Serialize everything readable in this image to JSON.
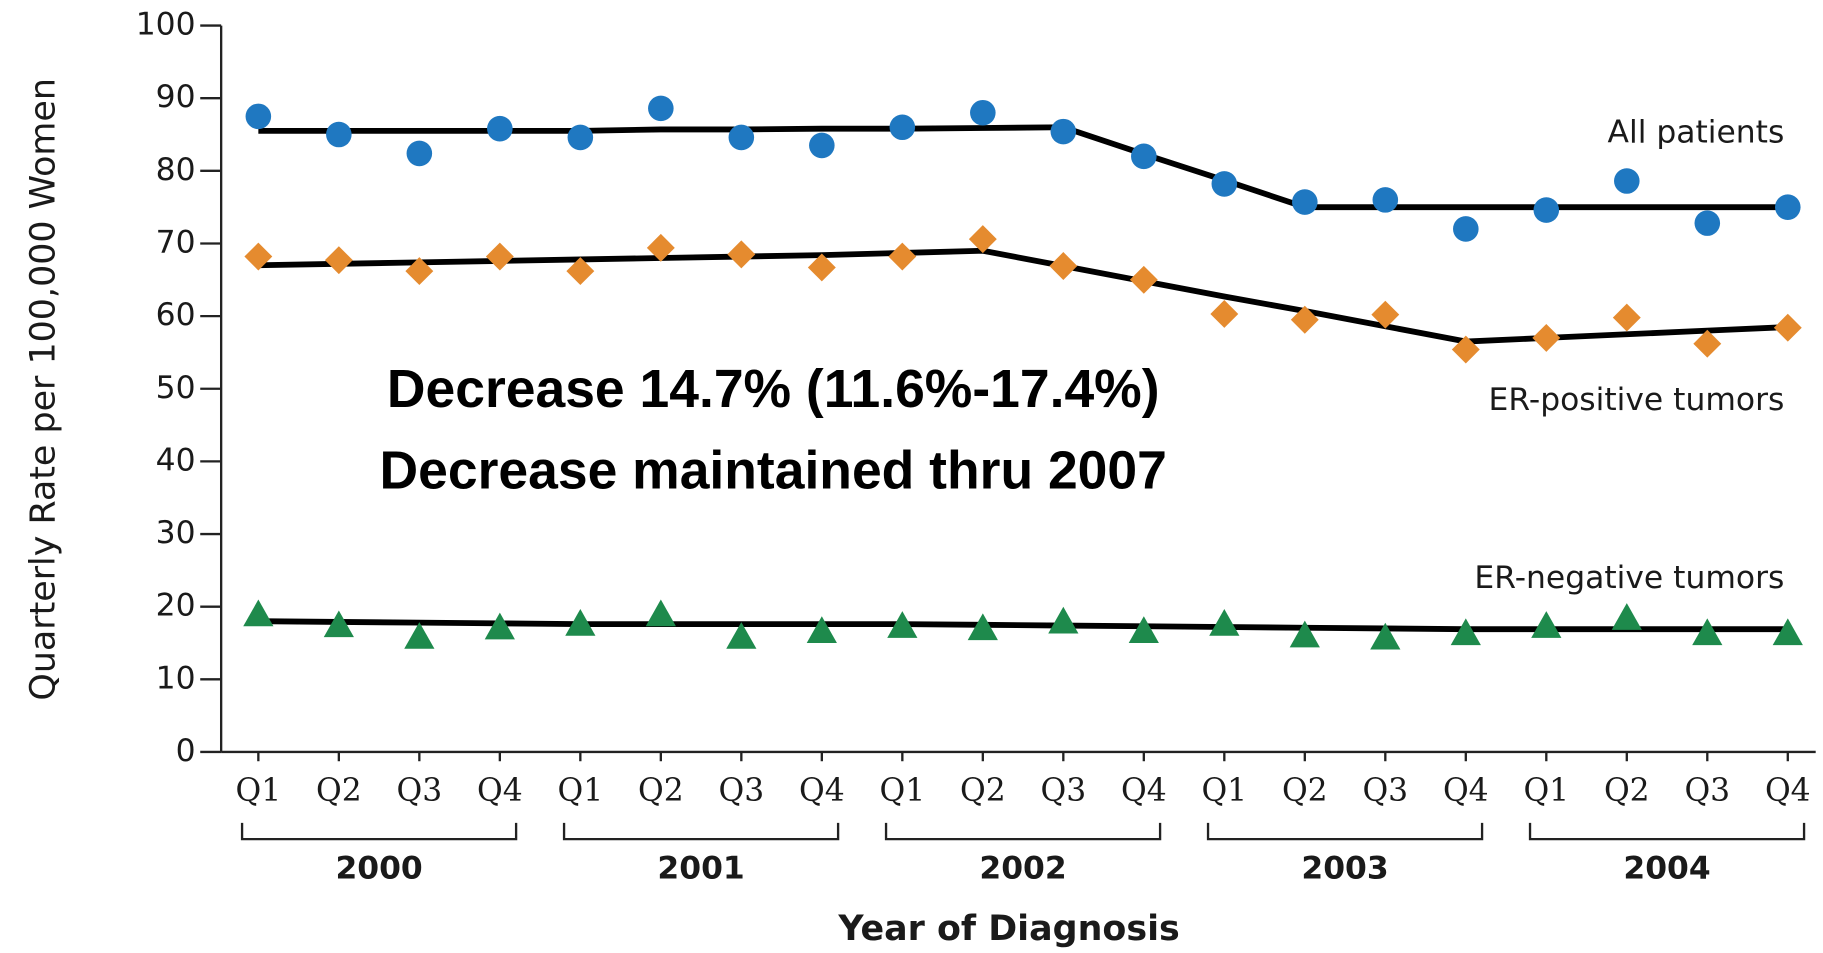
{
  "chart_data": {
    "type": "line",
    "y_label": "Quarterly Rate per 100,000 Women",
    "x_label": "Year of Diagnosis",
    "categories": [
      "Q1",
      "Q2",
      "Q3",
      "Q4",
      "Q1",
      "Q2",
      "Q3",
      "Q4",
      "Q1",
      "Q2",
      "Q3",
      "Q4",
      "Q1",
      "Q2",
      "Q3",
      "Q4",
      "Q1",
      "Q2",
      "Q3",
      "Q4"
    ],
    "year_groups": [
      "2000",
      "2001",
      "2002",
      "2003",
      "2004"
    ],
    "ylim": [
      0,
      100
    ],
    "yticks": [
      0,
      10,
      20,
      30,
      40,
      50,
      60,
      70,
      80,
      90,
      100
    ],
    "trend_color": "#000000",
    "series": [
      {
        "name": "All patients",
        "color": "#1f78c1",
        "marker": "circle",
        "values": [
          87.5,
          85,
          82.4,
          85.8,
          84.6,
          88.6,
          84.6,
          83.5,
          86,
          88,
          85.4,
          82,
          78.2,
          75.7,
          76,
          72,
          74.6,
          78.6,
          72.8,
          75
        ],
        "trend": [
          85.5,
          85.5,
          85.5,
          85.5,
          85.5,
          85.7,
          85.7,
          85.8,
          85.8,
          85.9,
          86,
          82.3,
          78.7,
          75,
          75,
          75,
          75,
          75,
          75,
          75
        ]
      },
      {
        "name": "ER-positive tumors",
        "color": "#e58b2f",
        "marker": "diamond",
        "values": [
          68.2,
          67.7,
          66.2,
          68.2,
          66.2,
          69.4,
          68.5,
          66.7,
          68.2,
          70.6,
          66.9,
          65,
          60.3,
          59.5,
          60.2,
          55.4,
          57,
          59.8,
          56.2,
          58.4
        ],
        "trend": [
          67,
          67.2,
          67.4,
          67.6,
          67.8,
          68,
          68.2,
          68.4,
          68.7,
          69,
          66.9,
          64.8,
          62.7,
          60.7,
          58.6,
          56.5,
          57,
          57.5,
          58,
          58.5
        ]
      },
      {
        "name": "ER-negative tumors",
        "color": "#1e8a4c",
        "marker": "triangle",
        "values": [
          18.9,
          17.4,
          15.8,
          17.1,
          17.6,
          18.9,
          15.8,
          16.6,
          17.3,
          17,
          17.9,
          16.6,
          17.6,
          16,
          15.7,
          16.3,
          17.3,
          18.4,
          16.3,
          16.3
        ],
        "trend": [
          18,
          17.9,
          17.8,
          17.7,
          17.6,
          17.6,
          17.6,
          17.6,
          17.6,
          17.5,
          17.4,
          17.3,
          17.2,
          17.1,
          17,
          16.9,
          16.9,
          16.9,
          16.9,
          16.9
        ]
      }
    ],
    "annotations": [
      "Decrease 14.7% (11.6%-17.4%)",
      "Decrease maintained thru 2007"
    ]
  }
}
